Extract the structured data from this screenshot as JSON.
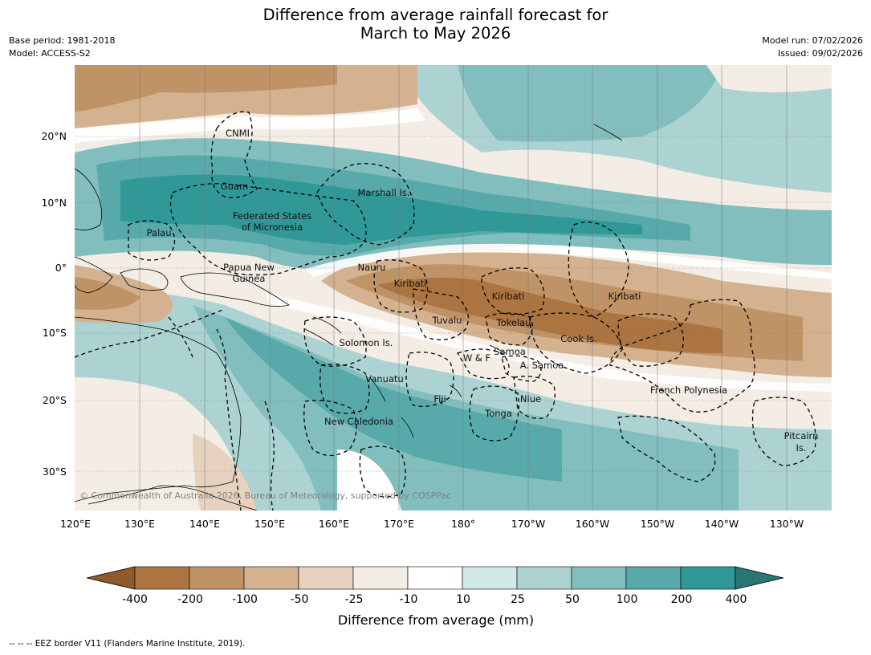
{
  "title_line1": "Difference from average rainfall forecast for",
  "title_line2": "March to May 2026",
  "meta_left": [
    "Base period: 1981-2018",
    "Model: ACCESS-S2"
  ],
  "meta_right": [
    "Model run: 07/02/2026",
    "Issued: 09/02/2026"
  ],
  "lat_labels": [
    "20°N",
    "10°N",
    "0°",
    "10°S",
    "20°S",
    "30°S"
  ],
  "lon_labels": [
    "120°E",
    "130°E",
    "140°E",
    "150°E",
    "160°E",
    "170°E",
    "180°",
    "170°W",
    "160°W",
    "150°W",
    "140°W",
    "130°W"
  ],
  "places": [
    "CNMI",
    "Guam",
    "Marshall Is.",
    "Federated States",
    "of Micronesia",
    "Palau",
    "Papua New",
    "Guinea",
    "Nauru",
    "Kiribati",
    "Kiribati",
    "Kiribati",
    "Tuvalu",
    "Tokelau",
    "Cook Is.",
    "Solomon Is.",
    "W & F",
    "Samoa",
    "A. Samoa",
    "Vanuatu",
    "Fiji",
    "Niue",
    "French Polynesia",
    "Tonga",
    "New Caledonia",
    "Pitcairn",
    "Is."
  ],
  "copyright": "© Commonwealth of Australia 2026, Bureau of Meteorology, supported by COSPPac",
  "colorbar": {
    "title": "Difference from average (mm)",
    "tick_labels": [
      "-400",
      "-200",
      "-100",
      "-50",
      "-25",
      "-10",
      "10",
      "25",
      "50",
      "100",
      "200",
      "400"
    ],
    "colors": [
      "#8f5a2a",
      "#ab7440",
      "#bf9366",
      "#d4b290",
      "#e6d2be",
      "#f3ede6",
      "#ffffff",
      "#d3e9e7",
      "#acd3d2",
      "#82bebe",
      "#58aaaa",
      "#319898",
      "#2a7675"
    ]
  },
  "footnote": "--  --  -- EEZ border V11 (Flanders Marine Institute, 2019)."
}
